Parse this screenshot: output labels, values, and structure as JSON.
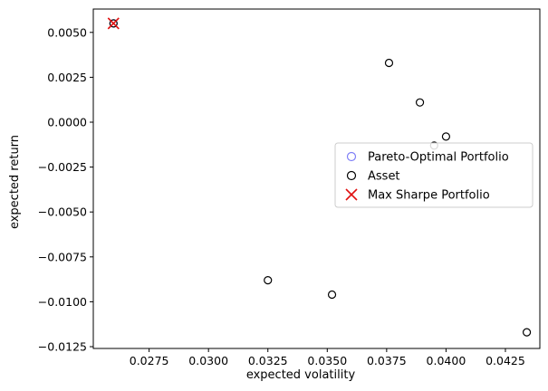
{
  "chart_data": {
    "type": "scatter",
    "xlabel": "expected volatility",
    "ylabel": "expected return",
    "xlim": [
      0.02515,
      0.04395
    ],
    "ylim": [
      -0.0126,
      0.0063
    ],
    "x_ticks": [
      0.0275,
      0.03,
      0.0325,
      0.035,
      0.0375,
      0.04,
      0.0425
    ],
    "x_tick_labels": [
      "0.0275",
      "0.0300",
      "0.0325",
      "0.0350",
      "0.0375",
      "0.0400",
      "0.0425"
    ],
    "y_ticks": [
      0.005,
      0.0025,
      0.0,
      -0.0025,
      -0.005,
      -0.0075,
      -0.01,
      -0.0125
    ],
    "y_tick_labels": [
      "0.0050",
      "0.0025",
      "0.0000",
      "−0.0025",
      "−0.0050",
      "−0.0075",
      "−0.0100",
      "−0.0125"
    ],
    "grid": false,
    "legend_position": "right",
    "series": [
      {
        "name": "Pareto-Optimal Portfolio",
        "marker": "circle-open",
        "color": "#7f7ff7",
        "points": [
          {
            "x": 0.026,
            "y": 0.0055
          }
        ]
      },
      {
        "name": "Asset",
        "marker": "circle-open",
        "color": "#000000",
        "points": [
          {
            "x": 0.026,
            "y": 0.0055
          },
          {
            "x": 0.0376,
            "y": 0.0033
          },
          {
            "x": 0.0389,
            "y": 0.0011
          },
          {
            "x": 0.04,
            "y": -0.0008
          },
          {
            "x": 0.0395,
            "y": -0.0013
          },
          {
            "x": 0.0325,
            "y": -0.0088
          },
          {
            "x": 0.0352,
            "y": -0.0096
          },
          {
            "x": 0.0434,
            "y": -0.0117
          }
        ]
      },
      {
        "name": "Max Sharpe Portfolio",
        "marker": "x",
        "color": "#e01010",
        "points": [
          {
            "x": 0.026,
            "y": 0.0055
          }
        ]
      }
    ]
  }
}
